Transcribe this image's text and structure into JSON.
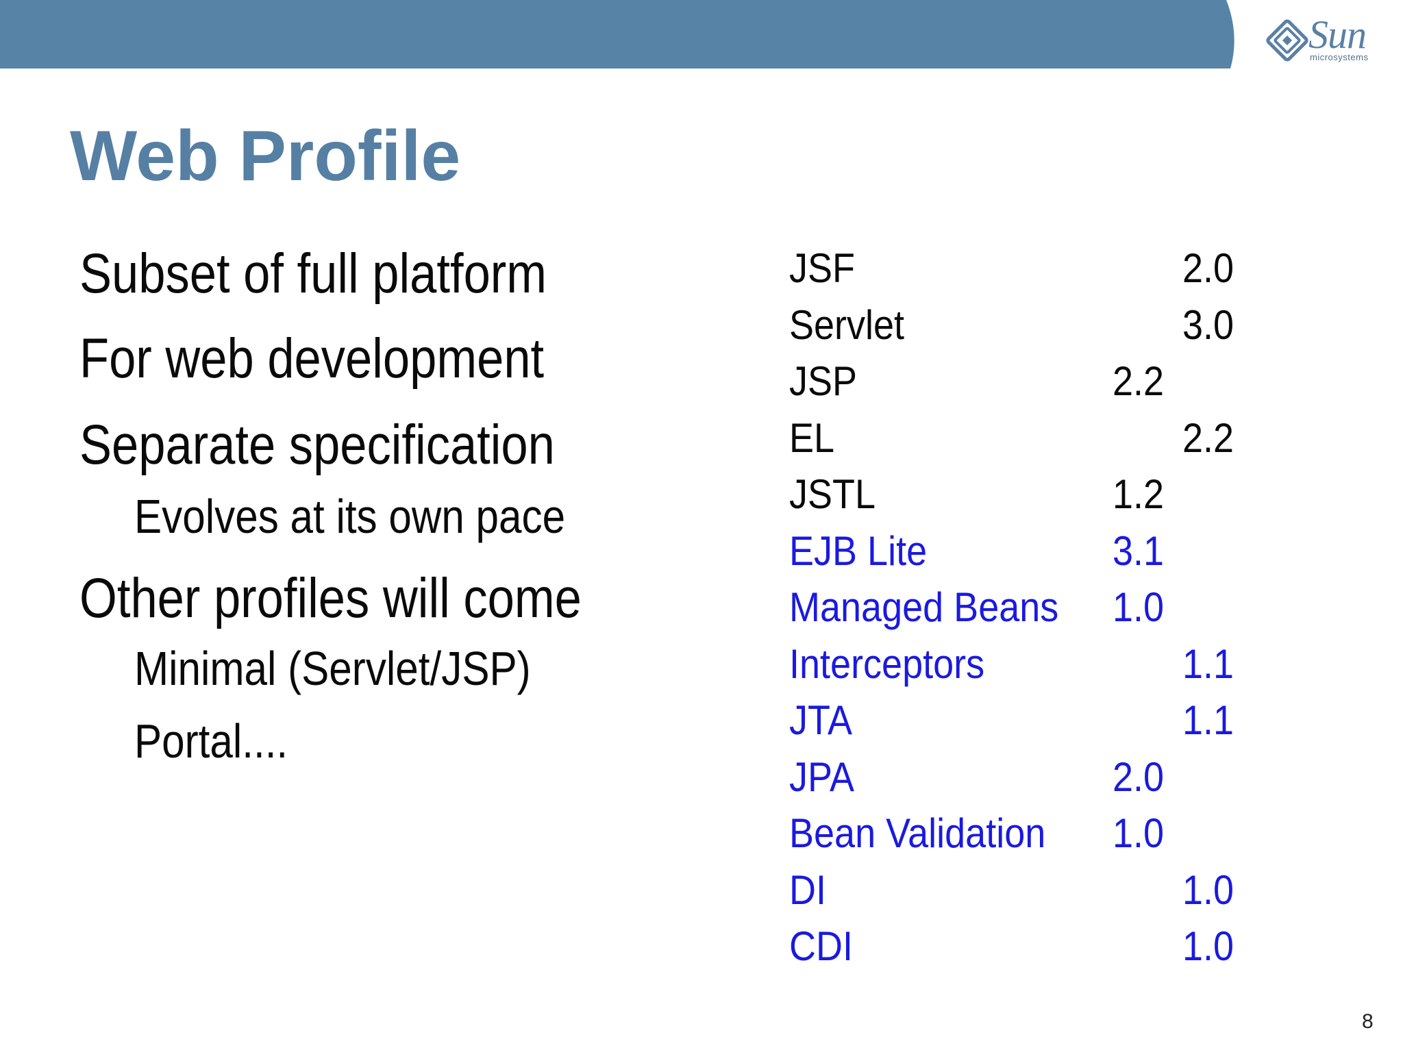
{
  "colors": {
    "header_band": "#5683a6",
    "title": "#567fa4",
    "body_text": "#0a0a0a",
    "spec_black": "#0a0a0a",
    "spec_blue": "#1a1adf",
    "logo": "#5a80a6"
  },
  "header": {
    "logo_icon": "sun-logo-icon",
    "logo_word": "Sun",
    "logo_sub": "microsystems"
  },
  "slide": {
    "title": "Web Profile",
    "page_number": "8"
  },
  "bullets": [
    {
      "level": 1,
      "text": "Subset of full platform"
    },
    {
      "level": 1,
      "text": "For web development"
    },
    {
      "level": 1,
      "text": "Separate specification"
    },
    {
      "level": 2,
      "text": "Evolves at its own pace"
    },
    {
      "level": 1,
      "text": "Other profiles will come"
    },
    {
      "level": 2,
      "text": "Minimal (Servlet/JSP)"
    },
    {
      "level": 2,
      "text": "Portal...."
    }
  ],
  "specs": [
    {
      "name": "JSF",
      "version": "2.0",
      "color": "black",
      "column": "b"
    },
    {
      "name": "Servlet",
      "version": "3.0",
      "color": "black",
      "column": "b"
    },
    {
      "name": "JSP",
      "version": "2.2",
      "color": "black",
      "column": "a"
    },
    {
      "name": "EL",
      "version": "2.2",
      "color": "black",
      "column": "b"
    },
    {
      "name": "JSTL",
      "version": "1.2",
      "color": "black",
      "column": "a"
    },
    {
      "name": "EJB Lite",
      "version": "3.1",
      "color": "blue",
      "column": "a"
    },
    {
      "name": "Managed Beans",
      "version": "1.0",
      "color": "blue",
      "column": "a"
    },
    {
      "name": "Interceptors",
      "version": "1.1",
      "color": "blue",
      "column": "b"
    },
    {
      "name": "JTA",
      "version": "1.1",
      "color": "blue",
      "column": "b"
    },
    {
      "name": "JPA",
      "version": "2.0",
      "color": "blue",
      "column": "a"
    },
    {
      "name": "Bean Validation",
      "version": "1.0",
      "color": "blue",
      "column": "a"
    },
    {
      "name": "DI",
      "version": "1.0",
      "color": "blue",
      "column": "b"
    },
    {
      "name": "CDI",
      "version": "1.0",
      "color": "blue",
      "column": "b"
    }
  ]
}
